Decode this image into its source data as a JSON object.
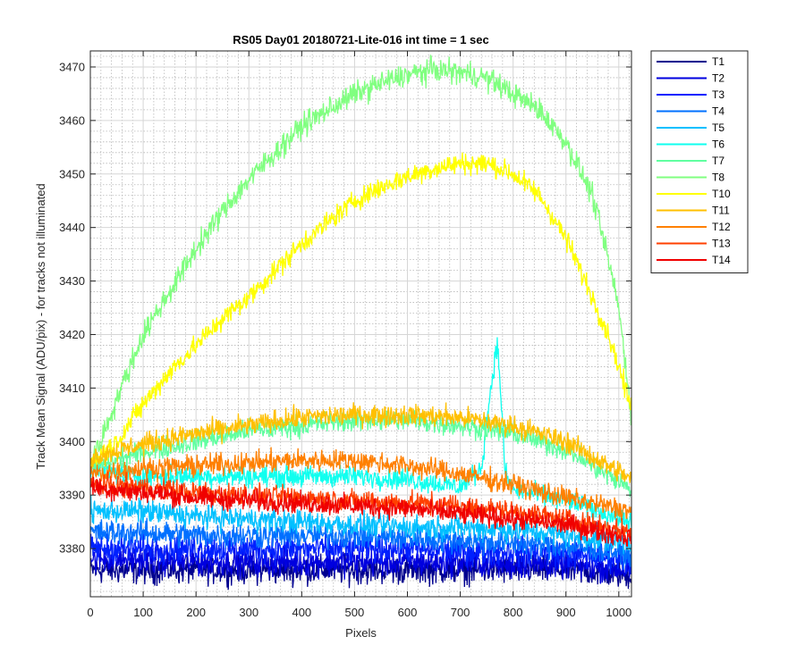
{
  "chart_data": {
    "type": "line",
    "title": "RS05 Day01 20180721-Lite-016 int time = 1 sec",
    "xlabel": "Pixels",
    "ylabel": "Track Mean Signal (ADU/pix) - for tracks not illuminated",
    "xlim": [
      0,
      1024
    ],
    "ylim": [
      3371,
      3473
    ],
    "xticks": [
      0,
      100,
      200,
      300,
      400,
      500,
      600,
      700,
      800,
      900,
      1000
    ],
    "yticks": [
      3380,
      3390,
      3400,
      3410,
      3420,
      3430,
      3440,
      3450,
      3460,
      3470
    ],
    "grid": true,
    "minor_grid": true,
    "legend_position": "outside-right",
    "series": [
      {
        "name": "T1",
        "color": "#00008f",
        "x": [
          0,
          100,
          200,
          300,
          400,
          500,
          600,
          700,
          800,
          900,
          1024
        ],
        "y": [
          3376,
          3376,
          3376,
          3376,
          3376,
          3376,
          3376,
          3376,
          3376,
          3376,
          3375
        ]
      },
      {
        "name": "T2",
        "color": "#0000df",
        "x": [
          0,
          100,
          200,
          300,
          400,
          500,
          600,
          700,
          800,
          900,
          1024
        ],
        "y": [
          3378,
          3378,
          3377.5,
          3377.5,
          3377.5,
          3377.5,
          3377.5,
          3377.5,
          3377,
          3377,
          3376
        ]
      },
      {
        "name": "T3",
        "color": "#0020ff",
        "x": [
          0,
          100,
          200,
          300,
          400,
          500,
          600,
          700,
          800,
          900,
          1024
        ],
        "y": [
          3380,
          3380,
          3380,
          3380,
          3380,
          3380,
          3380,
          3379.5,
          3379.5,
          3379,
          3378
        ]
      },
      {
        "name": "T4",
        "color": "#0070ff",
        "x": [
          0,
          100,
          200,
          300,
          400,
          500,
          600,
          700,
          800,
          900,
          1024
        ],
        "y": [
          3383,
          3383,
          3382.5,
          3382.5,
          3382.5,
          3382.5,
          3382,
          3381.5,
          3381,
          3380.5,
          3379
        ]
      },
      {
        "name": "T5",
        "color": "#00c0ff",
        "x": [
          0,
          100,
          200,
          300,
          400,
          500,
          600,
          700,
          800,
          900,
          1024
        ],
        "y": [
          3387,
          3387,
          3386,
          3385.5,
          3385,
          3384.5,
          3384,
          3384,
          3383.5,
          3382.5,
          3381
        ]
      },
      {
        "name": "T6",
        "color": "#10ffef",
        "x": [
          0,
          100,
          200,
          300,
          400,
          500,
          600,
          700,
          740,
          755,
          765,
          770,
          775,
          785,
          800,
          900,
          1024
        ],
        "y": [
          3395,
          3393.5,
          3393.5,
          3393.5,
          3393.5,
          3393.5,
          3393,
          3391.5,
          3395,
          3408,
          3415,
          3418,
          3412,
          3394,
          3391,
          3389,
          3385
        ]
      },
      {
        "name": "T7",
        "color": "#60ffa0",
        "x": [
          0,
          100,
          200,
          300,
          400,
          500,
          600,
          700,
          800,
          900,
          1024
        ],
        "y": [
          3395,
          3398,
          3400,
          3402,
          3403,
          3404,
          3404,
          3403,
          3401.5,
          3398.5,
          3391
        ]
      },
      {
        "name": "T8",
        "color": "#80ff80",
        "x": [
          0,
          20,
          50,
          100,
          150,
          200,
          250,
          300,
          350,
          400,
          450,
          500,
          550,
          600,
          650,
          700,
          750,
          800,
          850,
          900,
          950,
          980,
          1000,
          1024
        ],
        "y": [
          3396,
          3400,
          3408,
          3420,
          3428,
          3436,
          3443,
          3449,
          3454,
          3459,
          3462,
          3465,
          3467,
          3468.5,
          3469.5,
          3469,
          3468,
          3465,
          3462,
          3456,
          3446,
          3434,
          3425,
          3405
        ]
      },
      {
        "name": "T10",
        "color": "#ffff00",
        "x": [
          0,
          50,
          100,
          150,
          200,
          250,
          300,
          350,
          400,
          450,
          500,
          550,
          600,
          650,
          700,
          750,
          800,
          850,
          900,
          950,
          980,
          1000,
          1024
        ],
        "y": [
          3396,
          3400,
          3407,
          3413,
          3418,
          3423,
          3427,
          3432,
          3437,
          3441,
          3445,
          3447.5,
          3449.5,
          3451,
          3452,
          3452,
          3450,
          3446,
          3438,
          3427,
          3420,
          3414,
          3406
        ]
      },
      {
        "name": "T11",
        "color": "#ffc000",
        "x": [
          0,
          100,
          200,
          300,
          400,
          500,
          600,
          700,
          800,
          900,
          1024
        ],
        "y": [
          3397,
          3399.5,
          3401.5,
          3403,
          3404.5,
          3405,
          3405,
          3404.5,
          3403,
          3400,
          3393
        ]
      },
      {
        "name": "T12",
        "color": "#ff8000",
        "x": [
          0,
          100,
          200,
          300,
          400,
          500,
          600,
          700,
          800,
          900,
          1024
        ],
        "y": [
          3394,
          3395,
          3395.5,
          3396,
          3396.5,
          3396.5,
          3395.5,
          3394,
          3392,
          3389.5,
          3387
        ]
      },
      {
        "name": "T13",
        "color": "#ff4000",
        "x": [
          0,
          100,
          200,
          300,
          400,
          500,
          600,
          700,
          800,
          900,
          1024
        ],
        "y": [
          3392,
          3391.5,
          3390.5,
          3390,
          3389.5,
          3389,
          3388.5,
          3388,
          3387,
          3385.5,
          3383
        ]
      },
      {
        "name": "T14",
        "color": "#f00000",
        "x": [
          0,
          100,
          200,
          300,
          400,
          500,
          600,
          700,
          800,
          900,
          1024
        ],
        "y": [
          3391.5,
          3390.5,
          3389.5,
          3389,
          3388.5,
          3388,
          3387.5,
          3386.5,
          3385.5,
          3384.5,
          3382
        ]
      }
    ]
  }
}
